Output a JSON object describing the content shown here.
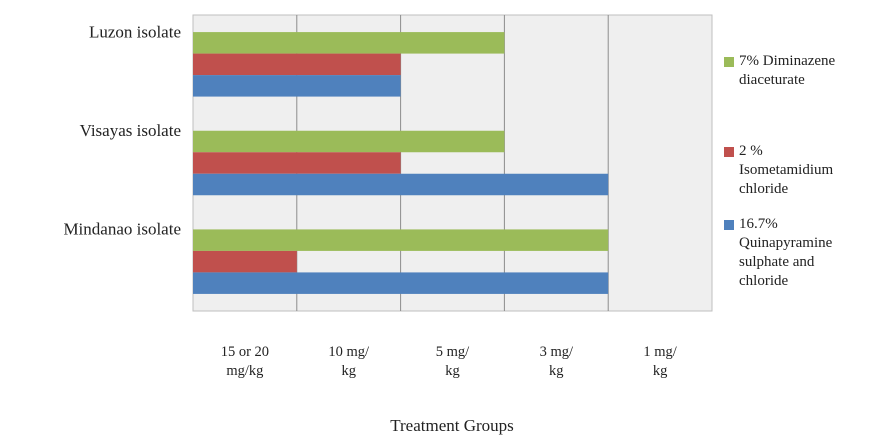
{
  "chart_data": {
    "type": "bar",
    "orientation": "horizontal",
    "categories": [
      "Luzon isolate",
      "Visayas isolate",
      "Mindanao isolate"
    ],
    "x_ticks": [
      [
        "15 or 20",
        "mg/kg"
      ],
      [
        "10 mg/",
        "kg"
      ],
      [
        "5 mg/",
        "kg"
      ],
      [
        "3 mg/",
        "kg"
      ],
      [
        "1 mg/",
        "kg"
      ]
    ],
    "xlabel": "Treatment Groups",
    "x_range": [
      0,
      5
    ],
    "grid": "vertical",
    "legend_position": "right",
    "series": [
      {
        "name": "7% Diminazene diaceturate",
        "color": "#9bbb59",
        "values": [
          3,
          3,
          4
        ]
      },
      {
        "name": "2 % Isometamidium chloride",
        "color": "#c0504d",
        "values": [
          2,
          2,
          1
        ]
      },
      {
        "name": "16.7% Quinapyramine sulphate and chloride",
        "color": "#4f81bd",
        "values": [
          2,
          4,
          4
        ]
      }
    ]
  },
  "legend": {
    "items": [
      {
        "text": "7% Diminazene\ndiaceturate",
        "color": "#9bbb59"
      },
      {
        "text": "2 %\nIsometamidium\nchloride",
        "color": "#c0504d"
      },
      {
        "text": "16.7%\nQuinapyramine\nsulphate and\nchloride",
        "color": "#4f81bd"
      }
    ]
  }
}
